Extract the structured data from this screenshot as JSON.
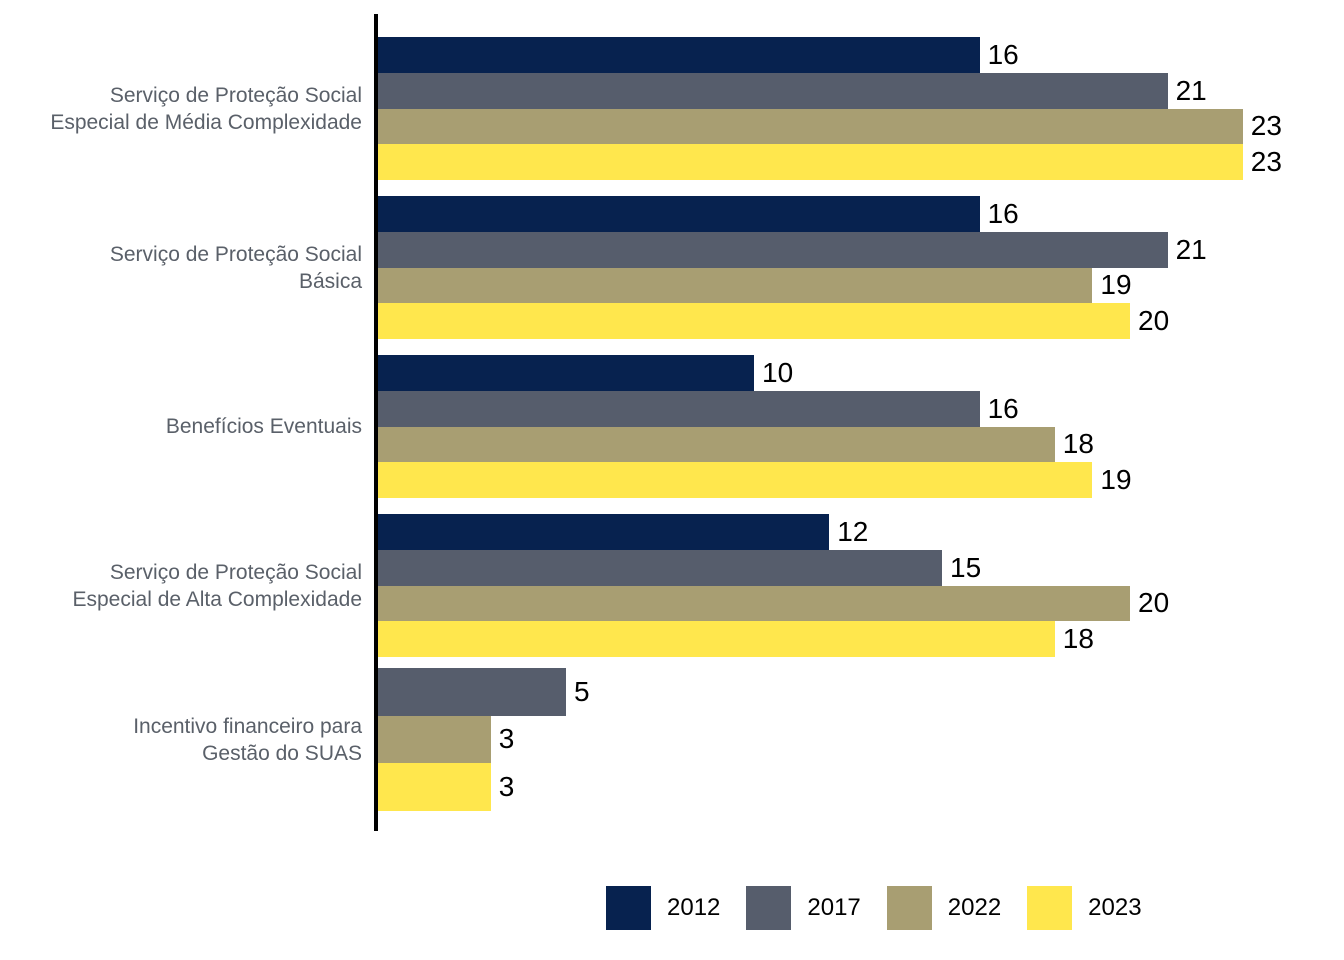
{
  "chart_data": {
    "type": "bar",
    "orientation": "horizontal",
    "title": "",
    "categories": [
      {
        "lines": [
          "Serviço de Proteção Social",
          "Especial de Média Complexidade"
        ]
      },
      {
        "lines": [
          "Serviço de Proteção Social",
          "Básica"
        ]
      },
      {
        "lines": [
          "Benefícios Eventuais"
        ]
      },
      {
        "lines": [
          "Serviço de Proteção Social",
          "Especial de Alta Complexidade"
        ]
      },
      {
        "lines": [
          "Incentivo financeiro para",
          "Gestão do SUAS"
        ]
      }
    ],
    "series": [
      {
        "name": "2012",
        "color": "#07224f",
        "values": [
          16,
          16,
          10,
          12,
          null
        ]
      },
      {
        "name": "2017",
        "color": "#565d6c",
        "values": [
          21,
          21,
          16,
          15,
          5
        ]
      },
      {
        "name": "2022",
        "color": "#a89e72",
        "values": [
          23,
          19,
          18,
          20,
          3
        ]
      },
      {
        "name": "2023",
        "color": "#ffe74d",
        "values": [
          23,
          20,
          19,
          18,
          3
        ]
      }
    ],
    "value_labels_shown": true,
    "axis": {
      "xlim": [
        0,
        23
      ],
      "gridlines": false,
      "y_axis_line_color": "#000000"
    },
    "legend": {
      "position": "bottom",
      "entries": [
        "2012",
        "2017",
        "2022",
        "2023"
      ]
    },
    "colors": {
      "category_label": "#5a6069",
      "value_label": "#000000",
      "background": "#ffffff"
    }
  }
}
